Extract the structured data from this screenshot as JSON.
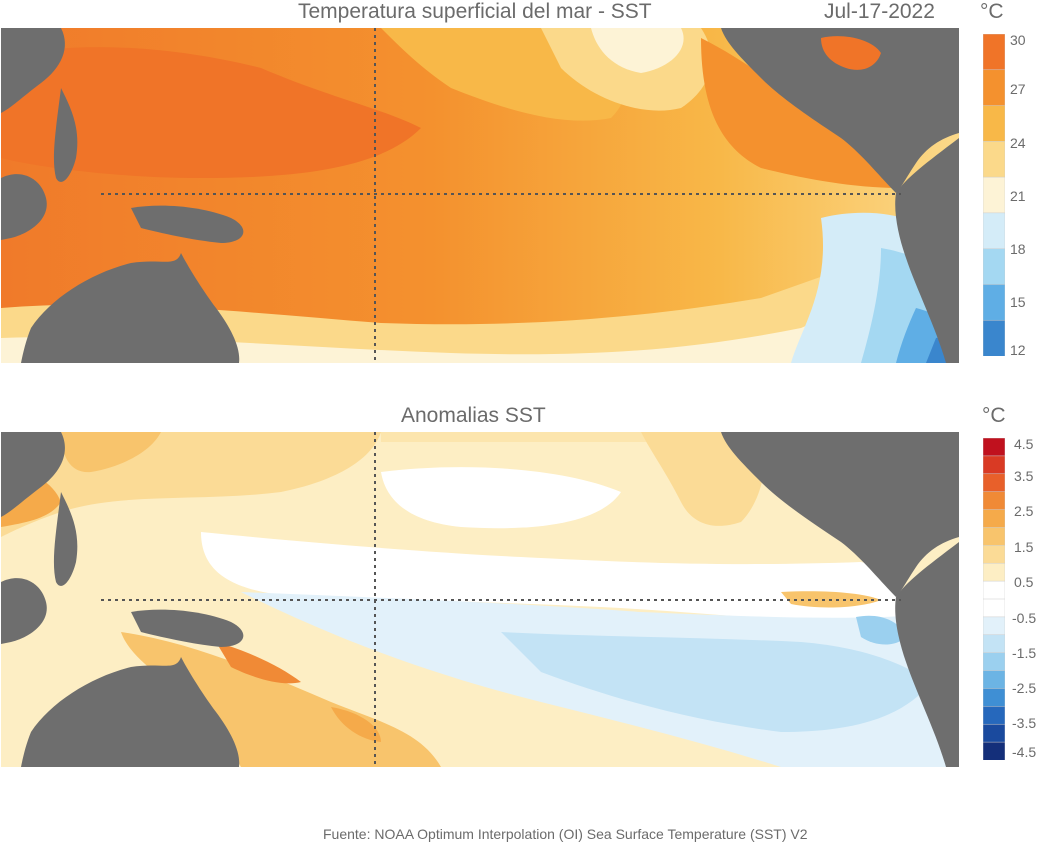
{
  "panel1": {
    "title": "Temperatura superficial del mar - SST",
    "date": "Jul-17-2022",
    "unit": "°C",
    "colorbar": {
      "ticks": [
        "30",
        "27",
        "24",
        "21",
        "18",
        "15",
        "12"
      ],
      "colors": [
        "#f07428",
        "#f4912e",
        "#f8b848",
        "#fbd98a",
        "#fdf3d6",
        "#d4ecf8",
        "#a4d8f2",
        "#5faee5",
        "#3a86cd"
      ]
    }
  },
  "panel2": {
    "title": "Anomalias SST",
    "unit": "°C",
    "colorbar": {
      "ticks": [
        "4.5",
        "3.5",
        "2.5",
        "1.5",
        "0.5",
        "-0.5",
        "-1.5",
        "-2.5",
        "-3.5",
        "-4.5"
      ],
      "colors": [
        "#c0111e",
        "#d93a24",
        "#e8602a",
        "#f08a36",
        "#f5aa4a",
        "#f8c46c",
        "#fbdb96",
        "#fdeec4",
        "#ffffff",
        "#ffffff",
        "#e2f1fa",
        "#c3e3f5",
        "#9bd0ef",
        "#6cb4e4",
        "#3f8fd4",
        "#2668bc",
        "#1a4a9e",
        "#142f7a"
      ]
    }
  },
  "source": "Fuente: NOAA Optimum Interpolation (OI) Sea Surface Temperature (SST) V2"
}
